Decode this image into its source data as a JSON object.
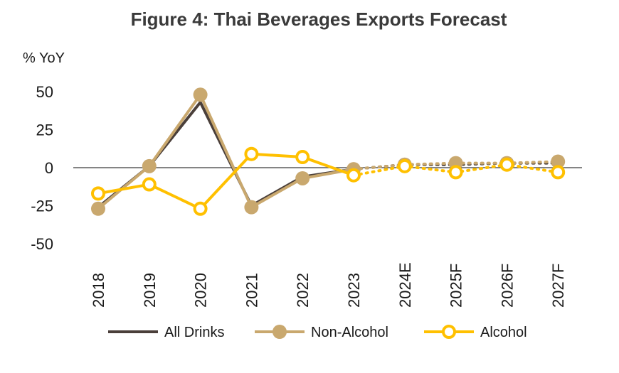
{
  "chart_data": {
    "type": "line",
    "title": "Figure 4: Thai Beverages Exports Forecast",
    "ylabel": "% YoY",
    "xlabel": "",
    "categories": [
      "2018",
      "2019",
      "2020",
      "2021",
      "2022",
      "2023",
      "2024E",
      "2025F",
      "2026F",
      "2027F"
    ],
    "ylim": [
      -50,
      50
    ],
    "yticks": [
      50,
      25,
      0,
      -25,
      -50
    ],
    "forecast_from_index": 5,
    "grid": false,
    "legend_position": "bottom",
    "series": [
      {
        "name": "All Drinks",
        "color": "#4a3f3a",
        "marker": "none",
        "values": [
          -26,
          1,
          43,
          -25,
          -6,
          -1,
          2,
          2,
          3,
          3
        ]
      },
      {
        "name": "Non-Alcohol",
        "color": "#c9a86e",
        "marker": "filled-circle",
        "values": [
          -27,
          1,
          48,
          -26,
          -7,
          -1,
          2,
          3,
          3,
          4
        ]
      },
      {
        "name": "Alcohol",
        "color": "#ffc000",
        "marker": "hollow-circle",
        "values": [
          -17,
          -11,
          -27,
          9,
          7,
          -5,
          1,
          -3,
          2,
          -3
        ]
      }
    ]
  }
}
